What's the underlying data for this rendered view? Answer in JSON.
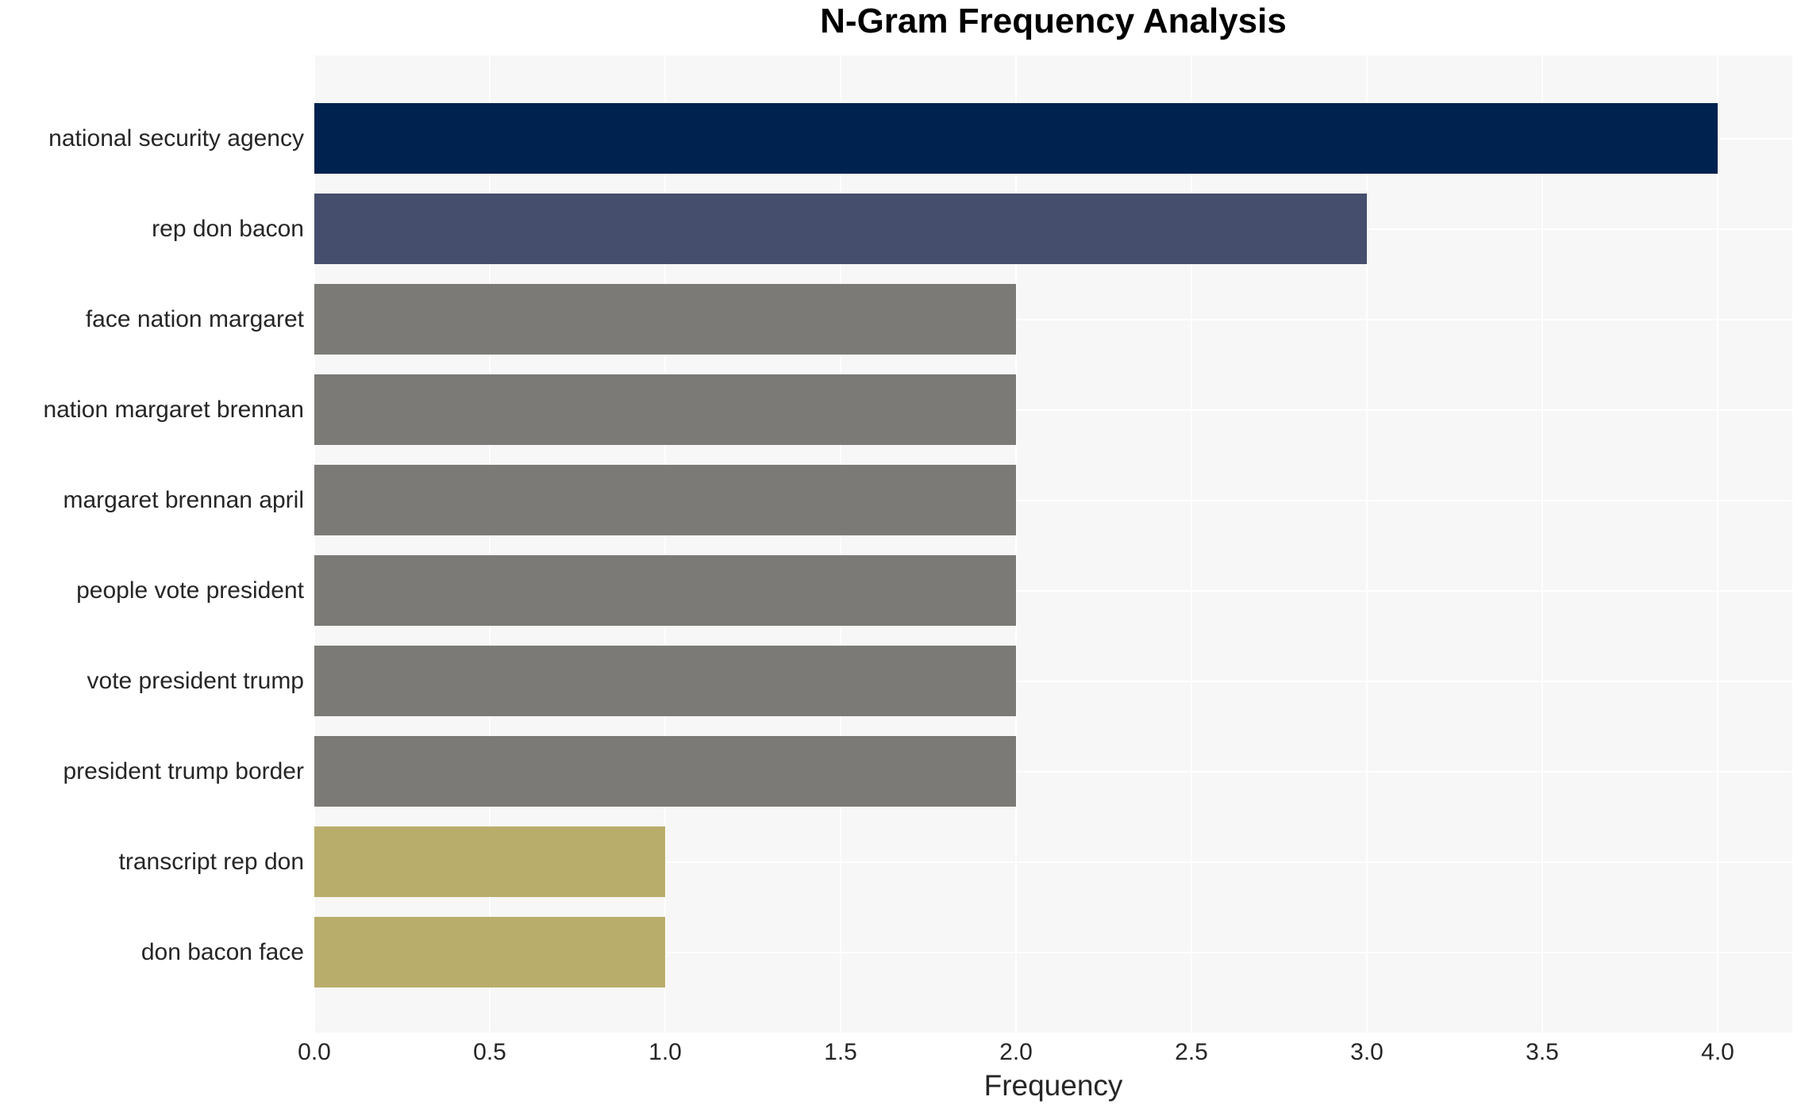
{
  "chart_title": "N-Gram Frequency Analysis",
  "x_axis_label": "Frequency",
  "colors": {
    "plot_background": "#f7f7f7",
    "gridline": "#ffffff",
    "title_text": "#000000",
    "axis_text": "#262626",
    "bar_navy": "#00224e",
    "bar_slate": "#454f6d",
    "bar_gray": "#7b7a76",
    "bar_khaki": "#b9ad6b"
  },
  "chart_data": {
    "type": "bar",
    "orientation": "horizontal",
    "title": "N-Gram Frequency Analysis",
    "xlabel": "Frequency",
    "ylabel": "",
    "grid": true,
    "legend": false,
    "xlim": [
      0.0,
      4.21
    ],
    "x_tick_step": 0.5,
    "x_tick_labels": [
      "0.0",
      "0.5",
      "1.0",
      "1.5",
      "2.0",
      "2.5",
      "3.0",
      "3.5",
      "4.0"
    ],
    "categories": [
      "national security agency",
      "rep don bacon",
      "face nation margaret",
      "nation margaret brennan",
      "margaret brennan april",
      "people vote president",
      "vote president trump",
      "president trump border",
      "transcript rep don",
      "don bacon face"
    ],
    "values": [
      4,
      3,
      2,
      2,
      2,
      2,
      2,
      2,
      1,
      1
    ],
    "bar_colors": [
      "#00224e",
      "#454f6d",
      "#7b7a76",
      "#7b7a76",
      "#7b7a76",
      "#7b7a76",
      "#7b7a76",
      "#7b7a76",
      "#b9ad6b",
      "#b9ad6b"
    ]
  }
}
